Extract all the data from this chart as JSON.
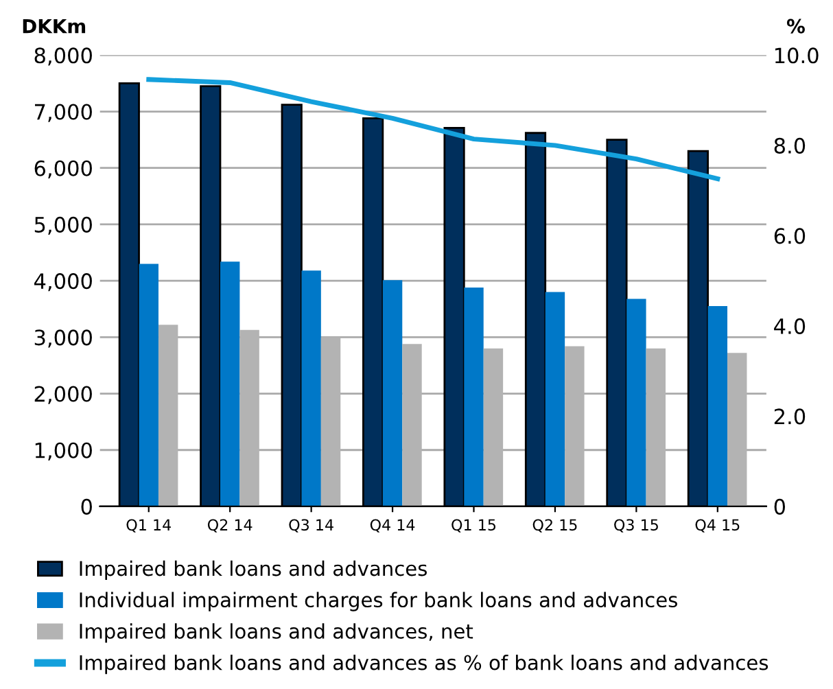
{
  "chart_data": {
    "type": "bar",
    "ylabel": "DKKm",
    "y2label": "%",
    "categories": [
      "Q1 14",
      "Q2 14",
      "Q3 14",
      "Q4 14",
      "Q1 15",
      "Q2 15",
      "Q3 15",
      "Q4 15"
    ],
    "series": [
      {
        "name": "Impaired bank loans and advances",
        "color": "#002f5c",
        "values": [
          7500,
          7450,
          7120,
          6880,
          6710,
          6620,
          6500,
          6300
        ]
      },
      {
        "name": "Individual impairment charges for bank loans and advances",
        "color": "#0078c8",
        "values": [
          4300,
          4340,
          4180,
          4010,
          3880,
          3800,
          3680,
          3550
        ]
      },
      {
        "name": "Impaired bank loans and advances, net",
        "color": "#b3b3b3",
        "values": [
          3220,
          3130,
          3000,
          2880,
          2800,
          2840,
          2800,
          2720
        ]
      },
      {
        "name": "Impaired bank loans and advances as % of bank loans and advances",
        "color": "#14a0dc",
        "type": "line",
        "axis": "y2",
        "values": [
          9.46,
          9.39,
          8.97,
          8.6,
          8.14,
          8.0,
          7.7,
          7.26
        ]
      }
    ],
    "ylim": [
      0,
      8000
    ],
    "yticks": [
      {
        "value": 0,
        "label": "0"
      },
      {
        "value": 1000,
        "label": "1,000"
      },
      {
        "value": 2000,
        "label": "2,000"
      },
      {
        "value": 3000,
        "label": "3,000"
      },
      {
        "value": 4000,
        "label": "4,000"
      },
      {
        "value": 5000,
        "label": "5,000"
      },
      {
        "value": 6000,
        "label": "6,000"
      },
      {
        "value": 7000,
        "label": "7,000"
      },
      {
        "value": 8000,
        "label": "8,000"
      }
    ],
    "y2lim": [
      0,
      10
    ],
    "y2ticks": [
      {
        "value": 0,
        "label": "0"
      },
      {
        "value": 2,
        "label": "2.0"
      },
      {
        "value": 4,
        "label": "4.0"
      },
      {
        "value": 6,
        "label": "6.0"
      },
      {
        "value": 8,
        "label": "8.0"
      },
      {
        "value": 10,
        "label": "10.0"
      }
    ],
    "grid": "y",
    "legend": "bottom"
  }
}
